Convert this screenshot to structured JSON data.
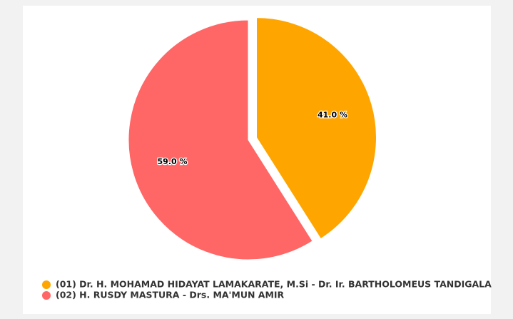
{
  "chart_data": {
    "type": "pie",
    "categories": [
      "(01) Dr. H. MOHAMAD HIDAYAT LAMAKARATE, M.Si - Dr. Ir. BARTHOLOMEUS TANDIGALA",
      "(02) H. RUSDY MASTURA - Drs. MA'MUN AMIR"
    ],
    "values": [
      41.0,
      59.0
    ],
    "value_labels": [
      "41.0 %",
      "59.0 %"
    ],
    "colors": [
      "#ffa500",
      "#ff6666"
    ],
    "exploded": [
      true,
      false
    ]
  }
}
